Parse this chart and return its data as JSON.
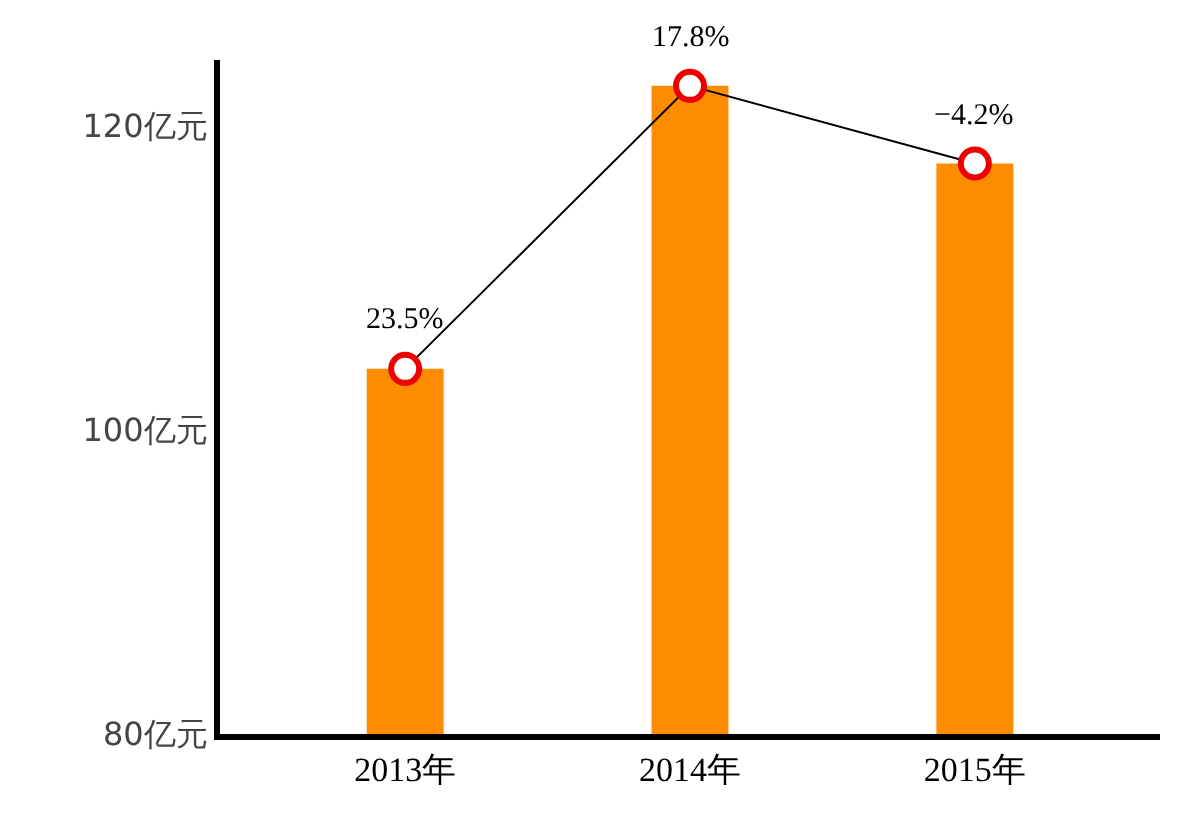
{
  "chart_data": {
    "type": "bar",
    "categories": [
      "2013年",
      "2014年",
      "2015年"
    ],
    "series": [
      {
        "color": "#ff8c00",
        "values": [
          104,
          122.6,
          117.5
        ]
      },
      {
        "type": "line",
        "color": "#000000",
        "marker": "circle",
        "values": [
          104,
          122.6,
          117.5
        ]
      }
    ],
    "annotations": [
      {
        "text": "23.5%",
        "x": "2013年",
        "y": 104
      },
      {
        "text": "17.8%",
        "x": "2014年",
        "y": 122.6
      },
      {
        "text": "−4.2%",
        "x": "2015年",
        "y": 117.5
      }
    ],
    "ylim": [
      80,
      124.3
    ],
    "yticks": [
      {
        "value": 80,
        "label": "80亿元"
      },
      {
        "value": 100,
        "label": "100亿元"
      },
      {
        "value": 120,
        "label": "120亿元"
      }
    ]
  }
}
